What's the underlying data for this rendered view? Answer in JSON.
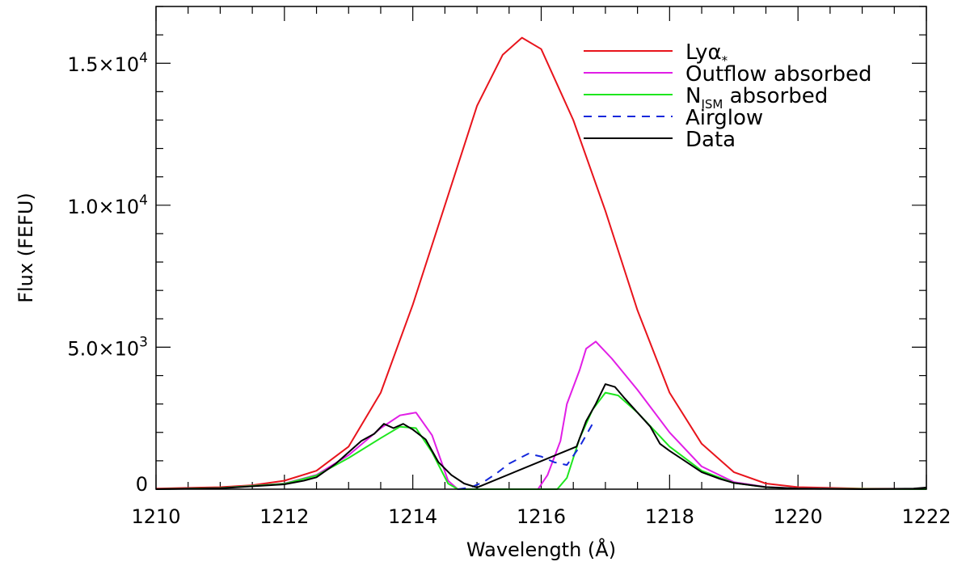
{
  "chart_data": {
    "type": "line",
    "title": "",
    "xlabel": "Wavelength (Å)",
    "ylabel": "Flux (FEFU)",
    "xlim": [
      1210,
      1222
    ],
    "ylim": [
      0,
      17000
    ],
    "legend_position": "top-right",
    "x_ticks": [
      {
        "value": 1210,
        "label": "1210"
      },
      {
        "value": 1212,
        "label": "1212"
      },
      {
        "value": 1214,
        "label": "1214"
      },
      {
        "value": 1216,
        "label": "1216"
      },
      {
        "value": 1218,
        "label": "1218"
      },
      {
        "value": 1220,
        "label": "1220"
      },
      {
        "value": 1222,
        "label": "1222"
      }
    ],
    "y_ticks": [
      {
        "value": 0,
        "mantissa": "0",
        "exponent": ""
      },
      {
        "value": 5000,
        "mantissa": "5.0×10",
        "exponent": "3"
      },
      {
        "value": 10000,
        "mantissa": "1.0×10",
        "exponent": "4"
      },
      {
        "value": 15000,
        "mantissa": "1.5×10",
        "exponent": "4"
      }
    ],
    "series": [
      {
        "key": "lya",
        "name": "Lyα",
        "name_sub": "*",
        "color": "#e8141c",
        "dash": "",
        "points": [
          [
            1210,
            20
          ],
          [
            1211,
            70
          ],
          [
            1211.5,
            140
          ],
          [
            1212,
            300
          ],
          [
            1212.5,
            650
          ],
          [
            1213,
            1500
          ],
          [
            1213.5,
            3400
          ],
          [
            1214,
            6500
          ],
          [
            1214.5,
            10000
          ],
          [
            1215,
            13500
          ],
          [
            1215.4,
            15300
          ],
          [
            1215.7,
            15900
          ],
          [
            1216,
            15500
          ],
          [
            1216.5,
            13000
          ],
          [
            1217,
            9800
          ],
          [
            1217.5,
            6300
          ],
          [
            1218,
            3400
          ],
          [
            1218.5,
            1600
          ],
          [
            1219,
            600
          ],
          [
            1219.5,
            200
          ],
          [
            1220,
            70
          ],
          [
            1221,
            20
          ],
          [
            1222,
            10
          ]
        ]
      },
      {
        "key": "outflow",
        "name": "Outflow absorbed",
        "color": "#e11ee6",
        "dash": "",
        "points": [
          [
            1210,
            0
          ],
          [
            1211,
            40
          ],
          [
            1212,
            200
          ],
          [
            1212.5,
            500
          ],
          [
            1213,
            1200
          ],
          [
            1213.5,
            2150
          ],
          [
            1213.8,
            2600
          ],
          [
            1214.05,
            2700
          ],
          [
            1214.3,
            1900
          ],
          [
            1214.55,
            300
          ],
          [
            1214.7,
            0
          ],
          [
            1215.95,
            0
          ],
          [
            1216.1,
            500
          ],
          [
            1216.3,
            1700
          ],
          [
            1216.4,
            3000
          ],
          [
            1216.6,
            4200
          ],
          [
            1216.7,
            4950
          ],
          [
            1216.85,
            5200
          ],
          [
            1217.1,
            4600
          ],
          [
            1217.5,
            3500
          ],
          [
            1218,
            2000
          ],
          [
            1218.5,
            800
          ],
          [
            1219,
            250
          ],
          [
            1219.5,
            80
          ],
          [
            1220,
            25
          ],
          [
            1222,
            0
          ]
        ]
      },
      {
        "key": "ism",
        "name": "N",
        "name_sub": "ISM",
        "name_suffix": " absorbed",
        "color": "#1ee61e",
        "dash": "",
        "points": [
          [
            1210,
            0
          ],
          [
            1211,
            40
          ],
          [
            1212,
            190
          ],
          [
            1212.5,
            480
          ],
          [
            1213,
            1100
          ],
          [
            1213.5,
            1800
          ],
          [
            1213.8,
            2200
          ],
          [
            1214.05,
            2150
          ],
          [
            1214.3,
            1300
          ],
          [
            1214.55,
            200
          ],
          [
            1214.7,
            0
          ],
          [
            1216.25,
            0
          ],
          [
            1216.4,
            400
          ],
          [
            1216.6,
            1800
          ],
          [
            1216.8,
            2800
          ],
          [
            1217,
            3400
          ],
          [
            1217.2,
            3300
          ],
          [
            1217.5,
            2700
          ],
          [
            1218,
            1500
          ],
          [
            1218.5,
            650
          ],
          [
            1219,
            220
          ],
          [
            1219.5,
            70
          ],
          [
            1220,
            20
          ],
          [
            1222,
            0
          ]
        ]
      },
      {
        "key": "airglow",
        "name": "Airglow",
        "color": "#1428dc",
        "dash": "10,8",
        "points": [
          [
            1214.7,
            0
          ],
          [
            1214.9,
            60
          ],
          [
            1215.1,
            250
          ],
          [
            1215.3,
            550
          ],
          [
            1215.5,
            900
          ],
          [
            1215.8,
            1250
          ],
          [
            1216,
            1150
          ],
          [
            1216.2,
            950
          ],
          [
            1216.4,
            850
          ],
          [
            1216.6,
            1500
          ],
          [
            1216.8,
            2300
          ]
        ]
      },
      {
        "key": "data",
        "name": "Data",
        "color": "#000000",
        "dash": "",
        "points": [
          [
            1210,
            0
          ],
          [
            1211,
            30
          ],
          [
            1212,
            170
          ],
          [
            1212.3,
            300
          ],
          [
            1212.5,
            420
          ],
          [
            1212.8,
            900
          ],
          [
            1213,
            1300
          ],
          [
            1213.2,
            1700
          ],
          [
            1213.4,
            1950
          ],
          [
            1213.55,
            2300
          ],
          [
            1213.7,
            2150
          ],
          [
            1213.85,
            2300
          ],
          [
            1214,
            2100
          ],
          [
            1214.2,
            1750
          ],
          [
            1214.4,
            950
          ],
          [
            1214.6,
            500
          ],
          [
            1214.8,
            200
          ],
          [
            1215,
            60
          ],
          [
            1216.55,
            1500
          ],
          [
            1216.7,
            2400
          ],
          [
            1216.85,
            3000
          ],
          [
            1217,
            3700
          ],
          [
            1217.15,
            3600
          ],
          [
            1217.3,
            3200
          ],
          [
            1217.5,
            2700
          ],
          [
            1217.7,
            2200
          ],
          [
            1217.85,
            1600
          ],
          [
            1218,
            1350
          ],
          [
            1218.2,
            1050
          ],
          [
            1218.5,
            600
          ],
          [
            1218.8,
            350
          ],
          [
            1219,
            220
          ],
          [
            1219.5,
            70
          ],
          [
            1220,
            20
          ],
          [
            1221,
            0
          ],
          [
            1221.8,
            20
          ],
          [
            1222,
            60
          ]
        ]
      }
    ]
  }
}
